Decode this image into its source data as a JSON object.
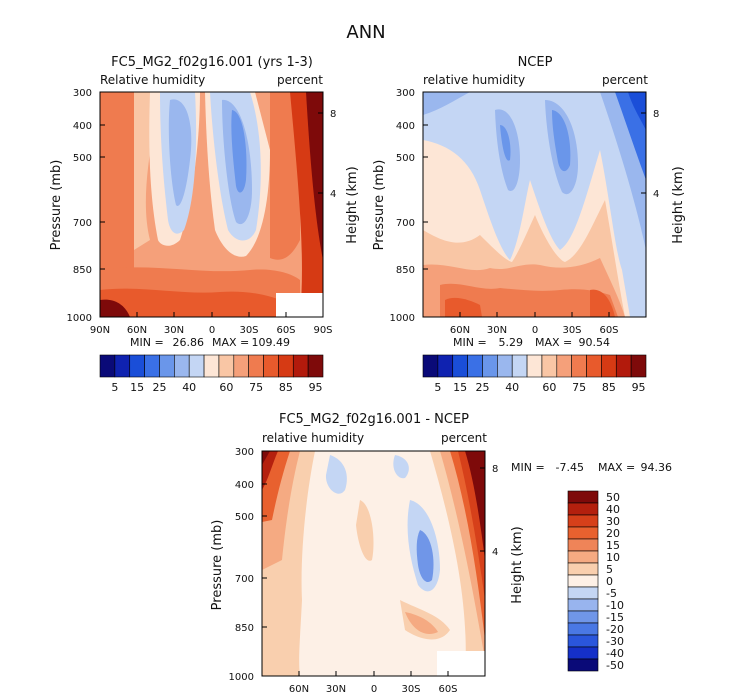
{
  "figure_title": "ANN",
  "colors": {
    "abs": [
      "#0a0a78",
      "#0f22b0",
      "#1a4ed8",
      "#3a70e6",
      "#6a96ea",
      "#9ab7ee",
      "#c4d6f4",
      "#fde6d6",
      "#f9c6a5",
      "#f5a07a",
      "#ef7b4f",
      "#e85a2c",
      "#d63a14",
      "#b21a0c",
      "#7e0a0a"
    ],
    "diff": [
      "#0a0a78",
      "#1530c8",
      "#2a56dc",
      "#4a78e4",
      "#7096e8",
      "#98b4ee",
      "#c4d6f4",
      "#fdf0e6",
      "#f9cfae",
      "#f5aa82",
      "#ef8458",
      "#e8612f",
      "#d6401a",
      "#b4200e",
      "#7e0a0a"
    ]
  },
  "chart_data": [
    {
      "type": "heatmap",
      "title": "FC5_MG2_f02g16.001 (yrs 1-3)",
      "left_label": "Relative humidity",
      "right_label": "percent",
      "ylabel": "Pressure (mb)",
      "y2label": "Height (km)",
      "yticks": [
        "300",
        "400",
        "500",
        "700",
        "850",
        "1000"
      ],
      "y2ticks": [
        "8",
        "4"
      ],
      "xticks": [
        "90N",
        "60N",
        "30N",
        "0",
        "30S",
        "60S",
        "90S"
      ],
      "min_label": "MIN =",
      "min": "26.86",
      "max_label": "MAX =",
      "max": "109.49"
    },
    {
      "type": "heatmap",
      "title": "NCEP",
      "left_label": "relative humidity",
      "right_label": "percent",
      "ylabel": "Pressure (mb)",
      "y2label": "Height (km)",
      "yticks": [
        "300",
        "400",
        "500",
        "700",
        "850",
        "1000"
      ],
      "y2ticks": [
        "8",
        "4"
      ],
      "xticks": [
        "60N",
        "30N",
        "0",
        "30S",
        "60S"
      ],
      "min_label": "MIN =",
      "min": "5.29",
      "max_label": "MAX =",
      "max": "90.54"
    },
    {
      "type": "heatmap",
      "title": "FC5_MG2_f02g16.001 - NCEP",
      "left_label": "relative humidity",
      "right_label": "percent",
      "ylabel": "Pressure (mb)",
      "y2label": "Height (km)",
      "yticks": [
        "300",
        "400",
        "500",
        "700",
        "850",
        "1000"
      ],
      "y2ticks": [
        "8",
        "4"
      ],
      "xticks": [
        "60N",
        "30N",
        "0",
        "30S",
        "60S"
      ],
      "min_label": "MIN =",
      "min": "-7.45",
      "max_label": "MAX =",
      "max": "94.36"
    }
  ],
  "legend_abs": [
    "5",
    "15",
    "25",
    "40",
    "60",
    "75",
    "85",
    "95"
  ],
  "legend_diff": [
    "50",
    "40",
    "30",
    "20",
    "15",
    "10",
    "5",
    "0",
    "-5",
    "-10",
    "-15",
    "-20",
    "-30",
    "-40",
    "-50"
  ]
}
